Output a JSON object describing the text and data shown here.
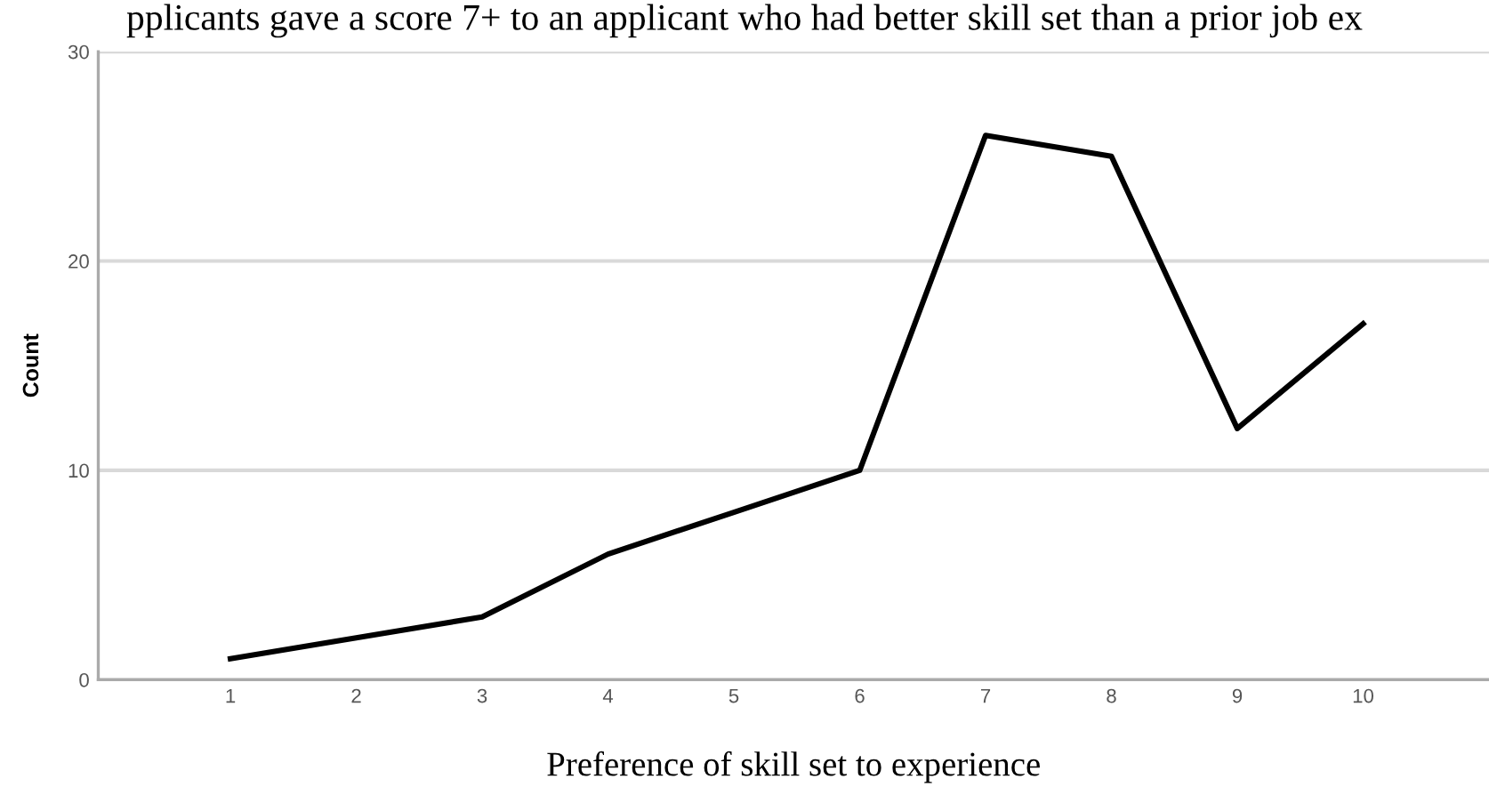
{
  "chart_data": {
    "type": "line",
    "title": "pplicants gave a score 7+ to an applicant who had better skill set than a prior job ex",
    "xlabel": "Preference of skill set to experience",
    "ylabel": "Count",
    "categories": [
      "1",
      "2",
      "3",
      "4",
      "5",
      "6",
      "7",
      "8",
      "9",
      "10"
    ],
    "series": [
      {
        "color": "#000000",
        "values": [
          1,
          2,
          3,
          6,
          8,
          10,
          26,
          25,
          12,
          17
        ]
      }
    ],
    "ylim": [
      0,
      30
    ],
    "yticks": [
      0,
      10,
      20,
      30
    ],
    "grid": "y",
    "marker": "none",
    "line_style": "solid"
  }
}
